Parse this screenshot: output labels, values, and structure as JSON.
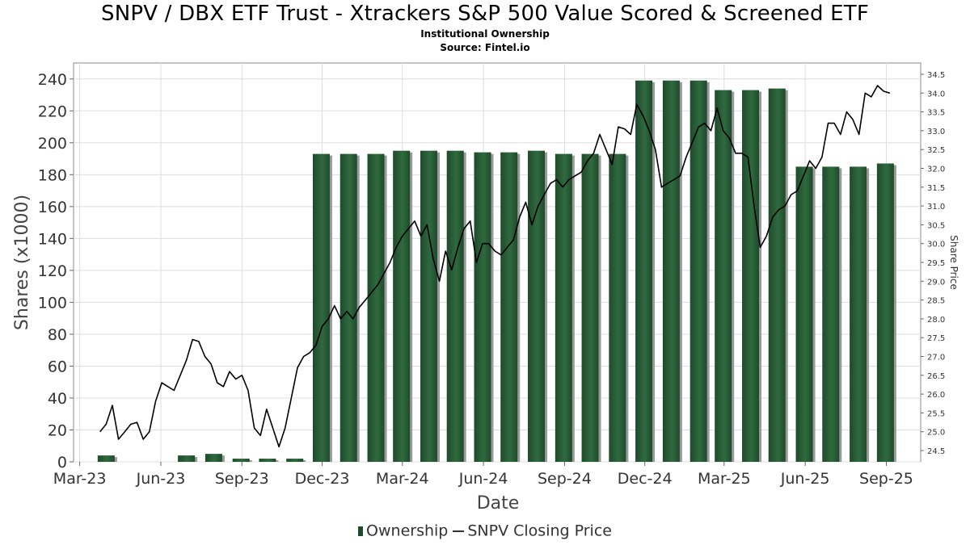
{
  "header": {
    "title": "SNPV / DBX ETF Trust - Xtrackers S&P 500 Value Scored & Screened ETF",
    "subtitle": "Institutional Ownership",
    "source": "Source: Fintel.io"
  },
  "legend": {
    "ownership": "Ownership",
    "price": "SNPV Closing Price"
  },
  "colors": {
    "bar": "#1f4a2c",
    "bar_highlight": "#2f6a3f",
    "bar_shadow": "#9a9a9a",
    "line": "#000000",
    "grid": "#dddddd"
  },
  "chart_data": {
    "type": "bar",
    "xlabel": "Date",
    "ylabel": "Shares (x1000)",
    "y2label": "Share Price",
    "ylim": [
      0,
      250
    ],
    "y2lim": [
      24.2,
      34.8
    ],
    "yticks": [
      0,
      20,
      40,
      60,
      80,
      100,
      120,
      140,
      160,
      180,
      200,
      220,
      240
    ],
    "y2ticks": [
      "24.5",
      "25.0",
      "25.5",
      "26.0",
      "26.5",
      "27.0",
      "27.5",
      "28.0",
      "28.5",
      "29.0",
      "29.5",
      "30.0",
      "30.5",
      "31.0",
      "31.5",
      "32.0",
      "32.5",
      "33.0",
      "33.5",
      "34.0",
      "34.5"
    ],
    "x_start": "2023-02-22",
    "x_end": "2025-10-10",
    "xticks": [
      {
        "date": "2023-03-01",
        "label": "Mar-23"
      },
      {
        "date": "2023-06-01",
        "label": "Jun-23"
      },
      {
        "date": "2023-09-01",
        "label": "Sep-23"
      },
      {
        "date": "2023-12-01",
        "label": "Dec-23"
      },
      {
        "date": "2024-03-01",
        "label": "Mar-24"
      },
      {
        "date": "2024-06-01",
        "label": "Jun-24"
      },
      {
        "date": "2024-09-01",
        "label": "Sep-24"
      },
      {
        "date": "2024-12-01",
        "label": "Dec-24"
      },
      {
        "date": "2025-03-01",
        "label": "Mar-25"
      },
      {
        "date": "2025-06-01",
        "label": "Jun-25"
      },
      {
        "date": "2025-09-01",
        "label": "Sep-25"
      }
    ],
    "series": [
      {
        "name": "Ownership",
        "type": "bar",
        "points": [
          {
            "date": "2023-03-31",
            "value": 4
          },
          {
            "date": "2023-06-30",
            "value": 4
          },
          {
            "date": "2023-07-31",
            "value": 5
          },
          {
            "date": "2023-08-31",
            "value": 2
          },
          {
            "date": "2023-09-30",
            "value": 2
          },
          {
            "date": "2023-10-31",
            "value": 2
          },
          {
            "date": "2023-11-30",
            "value": 193
          },
          {
            "date": "2023-12-31",
            "value": 193
          },
          {
            "date": "2024-01-31",
            "value": 193
          },
          {
            "date": "2024-02-29",
            "value": 195
          },
          {
            "date": "2024-03-31",
            "value": 195
          },
          {
            "date": "2024-04-30",
            "value": 195
          },
          {
            "date": "2024-05-31",
            "value": 194
          },
          {
            "date": "2024-06-30",
            "value": 194
          },
          {
            "date": "2024-07-31",
            "value": 195
          },
          {
            "date": "2024-08-31",
            "value": 193
          },
          {
            "date": "2024-09-30",
            "value": 193
          },
          {
            "date": "2024-10-31",
            "value": 193
          },
          {
            "date": "2024-11-30",
            "value": 239
          },
          {
            "date": "2024-12-31",
            "value": 239
          },
          {
            "date": "2025-01-31",
            "value": 239
          },
          {
            "date": "2025-02-28",
            "value": 233
          },
          {
            "date": "2025-03-31",
            "value": 233
          },
          {
            "date": "2025-04-30",
            "value": 234
          },
          {
            "date": "2025-05-31",
            "value": 185
          },
          {
            "date": "2025-06-30",
            "value": 185
          },
          {
            "date": "2025-07-31",
            "value": 185
          },
          {
            "date": "2025-08-31",
            "value": 187
          }
        ]
      },
      {
        "name": "SNPV Closing Price",
        "type": "line",
        "axis": "right",
        "points": [
          [
            "2023-03-24",
            25.0
          ],
          [
            "2023-03-31",
            25.2
          ],
          [
            "2023-04-07",
            25.7
          ],
          [
            "2023-04-14",
            24.8
          ],
          [
            "2023-04-21",
            25.0
          ],
          [
            "2023-04-28",
            25.2
          ],
          [
            "2023-05-05",
            25.25
          ],
          [
            "2023-05-12",
            24.8
          ],
          [
            "2023-05-19",
            25.0
          ],
          [
            "2023-05-26",
            25.8
          ],
          [
            "2023-06-02",
            26.3
          ],
          [
            "2023-06-09",
            26.2
          ],
          [
            "2023-06-16",
            26.1
          ],
          [
            "2023-06-23",
            26.5
          ],
          [
            "2023-06-30",
            26.9
          ],
          [
            "2023-07-07",
            27.45
          ],
          [
            "2023-07-14",
            27.4
          ],
          [
            "2023-07-21",
            27.0
          ],
          [
            "2023-07-28",
            26.8
          ],
          [
            "2023-08-04",
            26.3
          ],
          [
            "2023-08-11",
            26.2
          ],
          [
            "2023-08-18",
            26.6
          ],
          [
            "2023-08-25",
            26.4
          ],
          [
            "2023-09-01",
            26.5
          ],
          [
            "2023-09-08",
            26.1
          ],
          [
            "2023-09-15",
            25.1
          ],
          [
            "2023-09-22",
            24.9
          ],
          [
            "2023-09-29",
            25.6
          ],
          [
            "2023-10-06",
            25.1
          ],
          [
            "2023-10-13",
            24.6
          ],
          [
            "2023-10-20",
            25.1
          ],
          [
            "2023-10-27",
            25.9
          ],
          [
            "2023-11-03",
            26.7
          ],
          [
            "2023-11-10",
            27.0
          ],
          [
            "2023-11-17",
            27.1
          ],
          [
            "2023-11-24",
            27.3
          ],
          [
            "2023-12-01",
            27.8
          ],
          [
            "2023-12-08",
            28.0
          ],
          [
            "2023-12-15",
            28.35
          ],
          [
            "2023-12-22",
            28.0
          ],
          [
            "2023-12-29",
            28.2
          ],
          [
            "2024-01-05",
            28.0
          ],
          [
            "2024-01-12",
            28.3
          ],
          [
            "2024-01-19",
            28.5
          ],
          [
            "2024-01-26",
            28.7
          ],
          [
            "2024-02-02",
            28.9
          ],
          [
            "2024-02-09",
            29.2
          ],
          [
            "2024-02-16",
            29.5
          ],
          [
            "2024-02-23",
            29.9
          ],
          [
            "2024-03-01",
            30.2
          ],
          [
            "2024-03-08",
            30.4
          ],
          [
            "2024-03-15",
            30.6
          ],
          [
            "2024-03-22",
            30.2
          ],
          [
            "2024-03-29",
            30.5
          ],
          [
            "2024-04-05",
            29.6
          ],
          [
            "2024-04-12",
            29.0
          ],
          [
            "2024-04-19",
            29.8
          ],
          [
            "2024-04-26",
            29.3
          ],
          [
            "2024-05-03",
            29.9
          ],
          [
            "2024-05-10",
            30.4
          ],
          [
            "2024-05-17",
            30.6
          ],
          [
            "2024-05-24",
            29.5
          ],
          [
            "2024-05-31",
            30.0
          ],
          [
            "2024-06-07",
            30.0
          ],
          [
            "2024-06-14",
            29.8
          ],
          [
            "2024-06-21",
            29.7
          ],
          [
            "2024-06-28",
            29.9
          ],
          [
            "2024-07-05",
            30.1
          ],
          [
            "2024-07-12",
            30.7
          ],
          [
            "2024-07-19",
            31.1
          ],
          [
            "2024-07-26",
            30.5
          ],
          [
            "2024-08-02",
            31.0
          ],
          [
            "2024-08-09",
            31.3
          ],
          [
            "2024-08-16",
            31.6
          ],
          [
            "2024-08-23",
            31.7
          ],
          [
            "2024-08-30",
            31.5
          ],
          [
            "2024-09-06",
            31.7
          ],
          [
            "2024-09-13",
            31.8
          ],
          [
            "2024-09-20",
            31.9
          ],
          [
            "2024-09-27",
            32.2
          ],
          [
            "2024-10-04",
            32.4
          ],
          [
            "2024-10-11",
            32.9
          ],
          [
            "2024-10-18",
            32.5
          ],
          [
            "2024-10-25",
            32.1
          ],
          [
            "2024-11-01",
            33.1
          ],
          [
            "2024-11-08",
            33.05
          ],
          [
            "2024-11-15",
            32.9
          ],
          [
            "2024-11-22",
            33.7
          ],
          [
            "2024-11-29",
            33.4
          ],
          [
            "2024-12-06",
            33.0
          ],
          [
            "2024-12-13",
            32.5
          ],
          [
            "2024-12-20",
            31.5
          ],
          [
            "2024-12-27",
            31.6
          ],
          [
            "2025-01-03",
            31.7
          ],
          [
            "2025-01-10",
            31.8
          ],
          [
            "2025-01-17",
            32.3
          ],
          [
            "2025-01-24",
            32.7
          ],
          [
            "2025-01-31",
            33.1
          ],
          [
            "2025-02-07",
            33.2
          ],
          [
            "2025-02-14",
            33.0
          ],
          [
            "2025-02-21",
            33.6
          ],
          [
            "2025-02-28",
            33.0
          ],
          [
            "2025-03-07",
            32.8
          ],
          [
            "2025-03-14",
            32.4
          ],
          [
            "2025-03-21",
            32.4
          ],
          [
            "2025-03-28",
            32.3
          ],
          [
            "2025-04-04",
            31.0
          ],
          [
            "2025-04-11",
            29.9
          ],
          [
            "2025-04-18",
            30.2
          ],
          [
            "2025-04-25",
            30.7
          ],
          [
            "2025-05-02",
            30.9
          ],
          [
            "2025-05-09",
            31.0
          ],
          [
            "2025-05-16",
            31.3
          ],
          [
            "2025-05-23",
            31.4
          ],
          [
            "2025-05-30",
            31.8
          ],
          [
            "2025-06-06",
            32.2
          ],
          [
            "2025-06-13",
            32.0
          ],
          [
            "2025-06-20",
            32.3
          ],
          [
            "2025-06-27",
            33.2
          ],
          [
            "2025-07-04",
            33.2
          ],
          [
            "2025-07-11",
            32.9
          ],
          [
            "2025-07-18",
            33.5
          ],
          [
            "2025-07-25",
            33.3
          ],
          [
            "2025-08-01",
            32.9
          ],
          [
            "2025-08-08",
            34.0
          ],
          [
            "2025-08-15",
            33.9
          ],
          [
            "2025-08-22",
            34.2
          ],
          [
            "2025-08-29",
            34.05
          ],
          [
            "2025-09-05",
            34.0
          ]
        ]
      }
    ],
    "grid": true,
    "legend_position": "bottom-center"
  }
}
